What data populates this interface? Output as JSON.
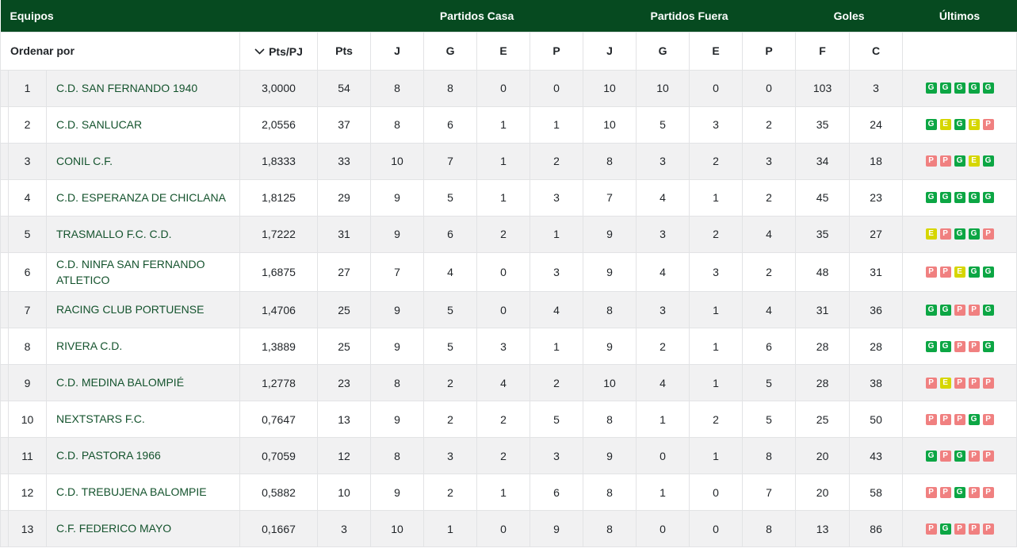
{
  "header": {
    "groups": [
      {
        "label": "Equipos"
      },
      {
        "label": "Partidos Casa"
      },
      {
        "label": "Partidos Fuera"
      },
      {
        "label": "Goles"
      },
      {
        "label": "Últimos"
      }
    ]
  },
  "subheader": {
    "sort_by_label": "Ordenar por",
    "sorted_column": "Pts/PJ",
    "sort_direction_icon": "chevron-down",
    "stat_columns": [
      "Pts",
      "J",
      "G",
      "E",
      "P",
      "J",
      "G",
      "E",
      "P",
      "F",
      "C"
    ]
  },
  "rows": [
    {
      "pos": 1,
      "team": "C.D. SAN FERNANDO 1940",
      "pts_pj": "3,0000",
      "pts": 54,
      "home": {
        "j": 8,
        "g": 8,
        "e": 0,
        "p": 0
      },
      "away": {
        "j": 10,
        "g": 10,
        "e": 0,
        "p": 0
      },
      "f": 103,
      "c": 3,
      "last": [
        "G",
        "G",
        "G",
        "G",
        "G"
      ]
    },
    {
      "pos": 2,
      "team": "C.D. SANLUCAR",
      "pts_pj": "2,0556",
      "pts": 37,
      "home": {
        "j": 8,
        "g": 6,
        "e": 1,
        "p": 1
      },
      "away": {
        "j": 10,
        "g": 5,
        "e": 3,
        "p": 2
      },
      "f": 35,
      "c": 24,
      "last": [
        "G",
        "E",
        "G",
        "E",
        "P"
      ]
    },
    {
      "pos": 3,
      "team": "CONIL C.F.",
      "pts_pj": "1,8333",
      "pts": 33,
      "home": {
        "j": 10,
        "g": 7,
        "e": 1,
        "p": 2
      },
      "away": {
        "j": 8,
        "g": 3,
        "e": 2,
        "p": 3
      },
      "f": 34,
      "c": 18,
      "last": [
        "P",
        "P",
        "G",
        "E",
        "G"
      ]
    },
    {
      "pos": 4,
      "team": "C.D. ESPERANZA DE CHICLANA",
      "pts_pj": "1,8125",
      "pts": 29,
      "home": {
        "j": 9,
        "g": 5,
        "e": 1,
        "p": 3
      },
      "away": {
        "j": 7,
        "g": 4,
        "e": 1,
        "p": 2
      },
      "f": 45,
      "c": 23,
      "last": [
        "G",
        "G",
        "G",
        "G",
        "G"
      ]
    },
    {
      "pos": 5,
      "team": "TRASMALLO F.C. C.D.",
      "pts_pj": "1,7222",
      "pts": 31,
      "home": {
        "j": 9,
        "g": 6,
        "e": 2,
        "p": 1
      },
      "away": {
        "j": 9,
        "g": 3,
        "e": 2,
        "p": 4
      },
      "f": 35,
      "c": 27,
      "last": [
        "E",
        "P",
        "G",
        "G",
        "P"
      ]
    },
    {
      "pos": 6,
      "team": "C.D. NINFA SAN FERNANDO ATLETICO",
      "pts_pj": "1,6875",
      "pts": 27,
      "home": {
        "j": 7,
        "g": 4,
        "e": 0,
        "p": 3
      },
      "away": {
        "j": 9,
        "g": 4,
        "e": 3,
        "p": 2
      },
      "f": 48,
      "c": 31,
      "last": [
        "P",
        "P",
        "E",
        "G",
        "G"
      ]
    },
    {
      "pos": 7,
      "team": "RACING CLUB PORTUENSE",
      "pts_pj": "1,4706",
      "pts": 25,
      "home": {
        "j": 9,
        "g": 5,
        "e": 0,
        "p": 4
      },
      "away": {
        "j": 8,
        "g": 3,
        "e": 1,
        "p": 4
      },
      "f": 31,
      "c": 36,
      "last": [
        "G",
        "G",
        "P",
        "P",
        "G"
      ]
    },
    {
      "pos": 8,
      "team": "RIVERA C.D.",
      "pts_pj": "1,3889",
      "pts": 25,
      "home": {
        "j": 9,
        "g": 5,
        "e": 3,
        "p": 1
      },
      "away": {
        "j": 9,
        "g": 2,
        "e": 1,
        "p": 6
      },
      "f": 28,
      "c": 28,
      "last": [
        "G",
        "G",
        "P",
        "P",
        "G"
      ]
    },
    {
      "pos": 9,
      "team": "C.D. MEDINA BALOMPIÉ",
      "pts_pj": "1,2778",
      "pts": 23,
      "home": {
        "j": 8,
        "g": 2,
        "e": 4,
        "p": 2
      },
      "away": {
        "j": 10,
        "g": 4,
        "e": 1,
        "p": 5
      },
      "f": 28,
      "c": 38,
      "last": [
        "P",
        "E",
        "P",
        "P",
        "P"
      ]
    },
    {
      "pos": 10,
      "team": "NEXTSTARS F.C.",
      "pts_pj": "0,7647",
      "pts": 13,
      "home": {
        "j": 9,
        "g": 2,
        "e": 2,
        "p": 5
      },
      "away": {
        "j": 8,
        "g": 1,
        "e": 2,
        "p": 5
      },
      "f": 25,
      "c": 50,
      "last": [
        "P",
        "P",
        "P",
        "G",
        "P"
      ]
    },
    {
      "pos": 11,
      "team": "C.D. PASTORA 1966",
      "pts_pj": "0,7059",
      "pts": 12,
      "home": {
        "j": 8,
        "g": 3,
        "e": 2,
        "p": 3
      },
      "away": {
        "j": 9,
        "g": 0,
        "e": 1,
        "p": 8
      },
      "f": 20,
      "c": 43,
      "last": [
        "G",
        "P",
        "G",
        "P",
        "P"
      ]
    },
    {
      "pos": 12,
      "team": "C.D. TREBUJENA BALOMPIE",
      "pts_pj": "0,5882",
      "pts": 10,
      "home": {
        "j": 9,
        "g": 2,
        "e": 1,
        "p": 6
      },
      "away": {
        "j": 8,
        "g": 1,
        "e": 0,
        "p": 7
      },
      "f": 20,
      "c": 58,
      "last": [
        "P",
        "P",
        "G",
        "P",
        "P"
      ]
    },
    {
      "pos": 13,
      "team": "C.F. FEDERICO MAYO",
      "pts_pj": "0,1667",
      "pts": 3,
      "home": {
        "j": 10,
        "g": 1,
        "e": 0,
        "p": 9
      },
      "away": {
        "j": 8,
        "g": 0,
        "e": 0,
        "p": 8
      },
      "f": 13,
      "c": 86,
      "last": [
        "P",
        "G",
        "P",
        "P",
        "P"
      ]
    }
  ],
  "badge_colors": {
    "G": "#0ca644",
    "E": "#d6d600",
    "P": "#f08080"
  },
  "colors": {
    "header_bg": "#064a20",
    "header_text": "#ffffff",
    "row_alt": "#f1f1f2",
    "border": "#e2e3e5",
    "body_text": "#212529",
    "team_text": "#14532d"
  }
}
